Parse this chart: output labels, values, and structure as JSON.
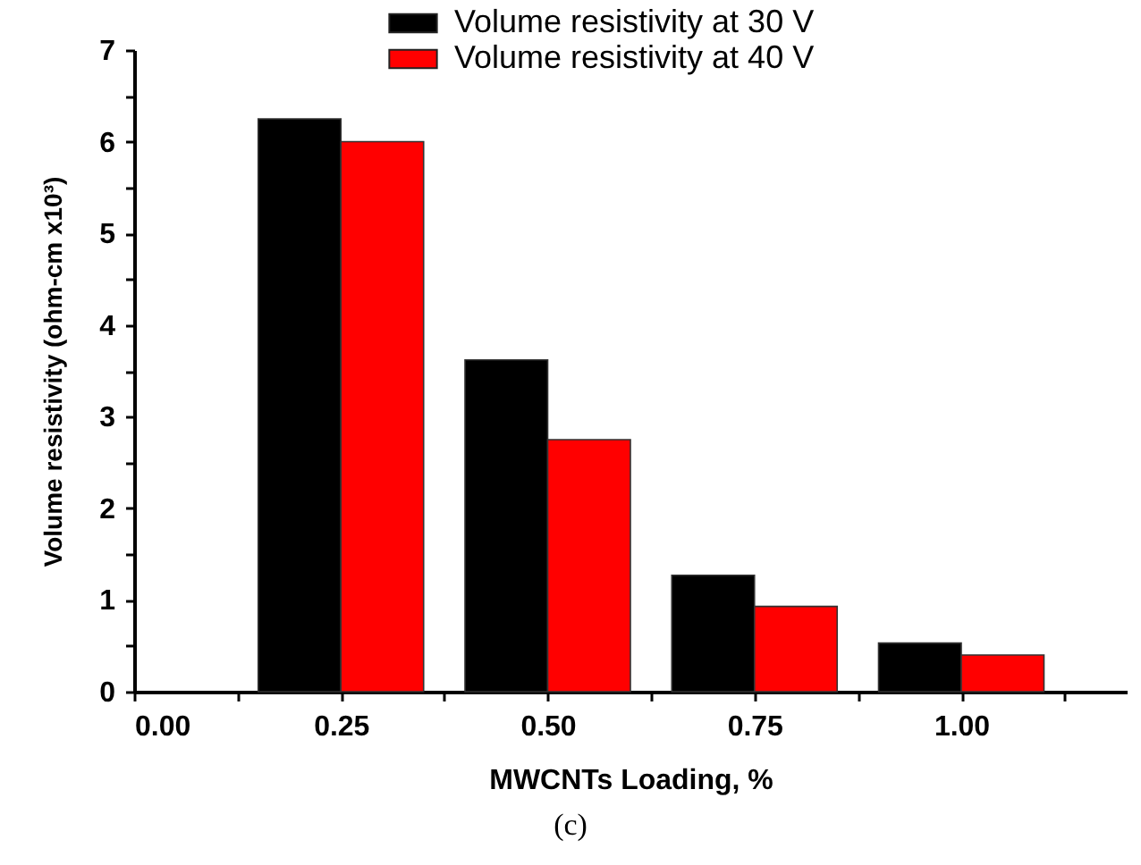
{
  "chart_data": {
    "type": "bar",
    "xlabel": "MWCNTs Loading, %",
    "ylabel": "Volume resistivity (ohm-cm x10³)",
    "x": [
      0.25,
      0.5,
      0.75,
      1.0
    ],
    "series": [
      {
        "name": "Volume resistivity at 30 V",
        "color": "#000000",
        "values": [
          6.25,
          3.62,
          1.27,
          0.53
        ]
      },
      {
        "name": "Volume resistivity at 40 V",
        "color": "#ff0000",
        "values": [
          6.0,
          2.75,
          0.93,
          0.4
        ]
      }
    ],
    "xlim": [
      0,
      1.2
    ],
    "xticks": [
      {
        "value": 0,
        "label": "0.00"
      },
      {
        "value": 0.125,
        "label": null
      },
      {
        "value": 0.25,
        "label": "0.25"
      },
      {
        "value": 0.375,
        "label": null
      },
      {
        "value": 0.5,
        "label": "0.50"
      },
      {
        "value": 0.625,
        "label": null
      },
      {
        "value": 0.75,
        "label": "0.75"
      },
      {
        "value": 0.875,
        "label": null
      },
      {
        "value": 1.0,
        "label": "1.00"
      },
      {
        "value": 1.125,
        "label": null
      }
    ],
    "ylim": [
      0,
      7
    ],
    "yticks": [
      0,
      {
        "value": 0.5,
        "label": null
      },
      1,
      {
        "value": 1.5,
        "label": null
      },
      2,
      {
        "value": 2.5,
        "label": null
      },
      3,
      {
        "value": 3.5,
        "label": null
      },
      4,
      {
        "value": 4.5,
        "label": null
      },
      5,
      {
        "value": 5.5,
        "label": null
      },
      6,
      {
        "value": 6.5,
        "label": null
      },
      7
    ],
    "grid": false,
    "legend": "top",
    "annotations": [
      "(c)"
    ]
  }
}
